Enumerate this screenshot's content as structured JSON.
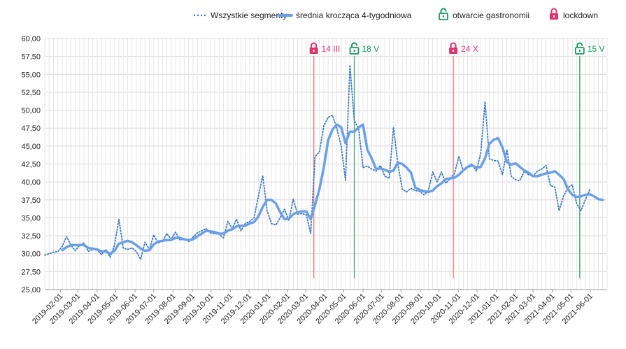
{
  "chart_data": {
    "type": "line",
    "ylim": [
      25,
      60
    ],
    "y_ticks": [
      "25,00",
      "27,50",
      "30,00",
      "32,50",
      "35,00",
      "37,50",
      "40,00",
      "42,50",
      "45,00",
      "47,50",
      "50,00",
      "52,50",
      "55,00",
      "57,50",
      "60,00"
    ],
    "x_tick_labels": [
      "2019-02-01",
      "2019-03-01",
      "2019-04-01",
      "2019-05-01",
      "2019-06-01",
      "2019-07-01",
      "2019-08-01",
      "2019-09-01",
      "2019-10-01",
      "2019-11-01",
      "2019-12-01",
      "2020-01-01",
      "2020-02-01",
      "2020-03-01",
      "2020-04-01",
      "2020-05-01",
      "2020-06-01",
      "2020-07-01",
      "2020-08-01",
      "2020-09-01",
      "2020-10-01",
      "2020-11-01",
      "2020-12-01",
      "2021-01-01",
      "2021-02-01",
      "2021-03-01",
      "2021-04-01",
      "2021-05-01",
      "2021-06-01"
    ],
    "x_range": [
      "2019-01-07",
      "2021-06-28"
    ],
    "grid": true,
    "legend_position": "top-right",
    "series": [
      {
        "name": "Wszystkie segmenty",
        "style": "dotted",
        "color": "#3a78c9",
        "points": [
          [
            "2019-01-07",
            29.8
          ],
          [
            "2019-01-14",
            30.0
          ],
          [
            "2019-01-21",
            30.2
          ],
          [
            "2019-01-28",
            30.3
          ],
          [
            "2019-02-04",
            31.0
          ],
          [
            "2019-02-11",
            32.4
          ],
          [
            "2019-02-18",
            31.2
          ],
          [
            "2019-02-25",
            30.4
          ],
          [
            "2019-03-04",
            31.2
          ],
          [
            "2019-03-11",
            31.5
          ],
          [
            "2019-03-18",
            30.3
          ],
          [
            "2019-03-25",
            30.6
          ],
          [
            "2019-04-01",
            30.5
          ],
          [
            "2019-04-08",
            29.9
          ],
          [
            "2019-04-15",
            30.6
          ],
          [
            "2019-04-22",
            29.5
          ],
          [
            "2019-04-29",
            31.2
          ],
          [
            "2019-05-06",
            34.8
          ],
          [
            "2019-05-13",
            30.8
          ],
          [
            "2019-05-20",
            30.6
          ],
          [
            "2019-05-27",
            30.8
          ],
          [
            "2019-06-03",
            30.3
          ],
          [
            "2019-06-10",
            29.2
          ],
          [
            "2019-06-17",
            31.6
          ],
          [
            "2019-06-24",
            30.6
          ],
          [
            "2019-07-01",
            32.6
          ],
          [
            "2019-07-08",
            31.5
          ],
          [
            "2019-07-15",
            31.7
          ],
          [
            "2019-07-22",
            32.8
          ],
          [
            "2019-07-29",
            32.0
          ],
          [
            "2019-08-05",
            33.0
          ],
          [
            "2019-08-12",
            31.9
          ],
          [
            "2019-08-19",
            32.1
          ],
          [
            "2019-08-26",
            31.7
          ],
          [
            "2019-09-02",
            32.3
          ],
          [
            "2019-09-09",
            32.9
          ],
          [
            "2019-09-16",
            33.2
          ],
          [
            "2019-09-23",
            33.5
          ],
          [
            "2019-09-30",
            32.9
          ],
          [
            "2019-10-07",
            32.8
          ],
          [
            "2019-10-14",
            32.7
          ],
          [
            "2019-10-21",
            32.2
          ],
          [
            "2019-10-28",
            34.5
          ],
          [
            "2019-11-04",
            33.5
          ],
          [
            "2019-11-11",
            34.8
          ],
          [
            "2019-11-18",
            33.2
          ],
          [
            "2019-11-25",
            34.2
          ],
          [
            "2019-12-02",
            34.5
          ],
          [
            "2019-12-09",
            35.0
          ],
          [
            "2019-12-16",
            38.0
          ],
          [
            "2019-12-23",
            40.9
          ],
          [
            "2019-12-30",
            36.0
          ],
          [
            "2020-01-06",
            34.2
          ],
          [
            "2020-01-13",
            34.0
          ],
          [
            "2020-01-20",
            35.0
          ],
          [
            "2020-01-27",
            36.2
          ],
          [
            "2020-02-03",
            34.6
          ],
          [
            "2020-02-10",
            37.6
          ],
          [
            "2020-02-17",
            35.5
          ],
          [
            "2020-02-24",
            35.6
          ],
          [
            "2020-03-02",
            35.4
          ],
          [
            "2020-03-09",
            32.8
          ],
          [
            "2020-03-16",
            43.5
          ],
          [
            "2020-03-23",
            44.2
          ],
          [
            "2020-03-30",
            47.8
          ],
          [
            "2020-04-06",
            49.0
          ],
          [
            "2020-04-13",
            49.3
          ],
          [
            "2020-04-20",
            47.5
          ],
          [
            "2020-04-27",
            45.0
          ],
          [
            "2020-05-04",
            40.2
          ],
          [
            "2020-05-11",
            56.3
          ],
          [
            "2020-05-18",
            48.5
          ],
          [
            "2020-05-25",
            47.5
          ],
          [
            "2020-06-01",
            42.0
          ],
          [
            "2020-06-08",
            42.2
          ],
          [
            "2020-06-15",
            41.8
          ],
          [
            "2020-06-22",
            41.5
          ],
          [
            "2020-06-29",
            42.3
          ],
          [
            "2020-07-06",
            40.8
          ],
          [
            "2020-07-13",
            40.5
          ],
          [
            "2020-07-20",
            47.6
          ],
          [
            "2020-07-27",
            42.5
          ],
          [
            "2020-08-03",
            39.0
          ],
          [
            "2020-08-10",
            38.6
          ],
          [
            "2020-08-17",
            39.1
          ],
          [
            "2020-08-24",
            38.8
          ],
          [
            "2020-08-31",
            38.7
          ],
          [
            "2020-09-07",
            38.2
          ],
          [
            "2020-09-14",
            38.8
          ],
          [
            "2020-09-21",
            41.4
          ],
          [
            "2020-09-28",
            40.0
          ],
          [
            "2020-10-05",
            41.4
          ],
          [
            "2020-10-12",
            39.8
          ],
          [
            "2020-10-19",
            40.5
          ],
          [
            "2020-10-26",
            41.2
          ],
          [
            "2020-11-02",
            43.6
          ],
          [
            "2020-11-09",
            41.5
          ],
          [
            "2020-11-16",
            42.2
          ],
          [
            "2020-11-23",
            42.5
          ],
          [
            "2020-11-30",
            41.5
          ],
          [
            "2020-12-07",
            44.0
          ],
          [
            "2020-12-14",
            51.2
          ],
          [
            "2020-12-21",
            43.2
          ],
          [
            "2020-12-28",
            43.0
          ],
          [
            "2021-01-04",
            42.9
          ],
          [
            "2021-01-11",
            41.0
          ],
          [
            "2021-01-18",
            44.5
          ],
          [
            "2021-01-25",
            40.8
          ],
          [
            "2021-02-01",
            40.3
          ],
          [
            "2021-02-08",
            40.2
          ],
          [
            "2021-02-15",
            41.5
          ],
          [
            "2021-02-22",
            41.0
          ],
          [
            "2021-03-01",
            40.8
          ],
          [
            "2021-03-08",
            41.5
          ],
          [
            "2021-03-15",
            41.8
          ],
          [
            "2021-03-22",
            42.3
          ],
          [
            "2021-03-29",
            39.5
          ],
          [
            "2021-04-05",
            39.3
          ],
          [
            "2021-04-12",
            36.0
          ],
          [
            "2021-04-19",
            38.0
          ],
          [
            "2021-04-26",
            39.2
          ],
          [
            "2021-05-03",
            39.6
          ],
          [
            "2021-05-10",
            37.0
          ],
          [
            "2021-05-17",
            36.0
          ],
          [
            "2021-05-24",
            37.5
          ],
          [
            "2021-05-31",
            38.9
          ]
        ]
      },
      {
        "name": "średnia krocząca 4-tygodniowa",
        "style": "solid",
        "color": "#6b9fe6",
        "points": [
          [
            "2019-02-04",
            30.5
          ],
          [
            "2019-02-11",
            30.9
          ],
          [
            "2019-02-18",
            31.2
          ],
          [
            "2019-02-25",
            31.2
          ],
          [
            "2019-03-04",
            31.2
          ],
          [
            "2019-03-11",
            31.2
          ],
          [
            "2019-03-18",
            30.8
          ],
          [
            "2019-03-25",
            30.7
          ],
          [
            "2019-04-01",
            30.6
          ],
          [
            "2019-04-08",
            30.3
          ],
          [
            "2019-04-15",
            30.3
          ],
          [
            "2019-04-22",
            30.0
          ],
          [
            "2019-04-29",
            30.4
          ],
          [
            "2019-05-06",
            31.4
          ],
          [
            "2019-05-13",
            31.6
          ],
          [
            "2019-05-20",
            31.8
          ],
          [
            "2019-05-27",
            31.6
          ],
          [
            "2019-06-03",
            31.2
          ],
          [
            "2019-06-10",
            30.7
          ],
          [
            "2019-06-17",
            30.4
          ],
          [
            "2019-06-24",
            30.5
          ],
          [
            "2019-07-01",
            31.3
          ],
          [
            "2019-07-08",
            31.7
          ],
          [
            "2019-07-15",
            31.8
          ],
          [
            "2019-07-22",
            31.9
          ],
          [
            "2019-07-29",
            31.9
          ],
          [
            "2019-08-05",
            32.2
          ],
          [
            "2019-08-12",
            32.2
          ],
          [
            "2019-08-19",
            32.0
          ],
          [
            "2019-08-26",
            31.9
          ],
          [
            "2019-09-02",
            32.0
          ],
          [
            "2019-09-09",
            32.4
          ],
          [
            "2019-09-16",
            32.8
          ],
          [
            "2019-09-23",
            33.2
          ],
          [
            "2019-09-30",
            33.1
          ],
          [
            "2019-10-07",
            33.0
          ],
          [
            "2019-10-14",
            32.8
          ],
          [
            "2019-10-21",
            32.8
          ],
          [
            "2019-10-28",
            33.2
          ],
          [
            "2019-11-04",
            33.4
          ],
          [
            "2019-11-11",
            33.8
          ],
          [
            "2019-11-18",
            33.9
          ],
          [
            "2019-11-25",
            33.9
          ],
          [
            "2019-12-02",
            34.2
          ],
          [
            "2019-12-09",
            34.4
          ],
          [
            "2019-12-16",
            35.2
          ],
          [
            "2019-12-23",
            36.5
          ],
          [
            "2019-12-30",
            37.5
          ],
          [
            "2020-01-06",
            37.5
          ],
          [
            "2020-01-13",
            37.0
          ],
          [
            "2020-01-20",
            35.8
          ],
          [
            "2020-01-27",
            34.8
          ],
          [
            "2020-02-03",
            34.9
          ],
          [
            "2020-02-10",
            35.5
          ],
          [
            "2020-02-17",
            35.8
          ],
          [
            "2020-02-24",
            35.9
          ],
          [
            "2020-03-02",
            35.9
          ],
          [
            "2020-03-09",
            34.8
          ],
          [
            "2020-03-16",
            36.8
          ],
          [
            "2020-03-23",
            39.0
          ],
          [
            "2020-03-30",
            42.0
          ],
          [
            "2020-04-06",
            45.8
          ],
          [
            "2020-04-13",
            47.3
          ],
          [
            "2020-04-20",
            48.0
          ],
          [
            "2020-04-27",
            47.6
          ],
          [
            "2020-05-04",
            45.4
          ],
          [
            "2020-05-11",
            47.0
          ],
          [
            "2020-05-18",
            47.0
          ],
          [
            "2020-05-25",
            47.6
          ],
          [
            "2020-06-01",
            48.0
          ],
          [
            "2020-06-08",
            44.5
          ],
          [
            "2020-06-15",
            43.3
          ],
          [
            "2020-06-22",
            41.8
          ],
          [
            "2020-06-29",
            41.9
          ],
          [
            "2020-07-06",
            41.7
          ],
          [
            "2020-07-13",
            41.4
          ],
          [
            "2020-07-20",
            41.6
          ],
          [
            "2020-07-27",
            42.7
          ],
          [
            "2020-08-03",
            42.5
          ],
          [
            "2020-08-10",
            42.0
          ],
          [
            "2020-08-17",
            41.3
          ],
          [
            "2020-08-24",
            39.2
          ],
          [
            "2020-08-31",
            38.9
          ],
          [
            "2020-09-07",
            38.7
          ],
          [
            "2020-09-14",
            38.6
          ],
          [
            "2020-09-21",
            38.8
          ],
          [
            "2020-09-28",
            39.4
          ],
          [
            "2020-10-05",
            39.8
          ],
          [
            "2020-10-12",
            40.4
          ],
          [
            "2020-10-19",
            40.5
          ],
          [
            "2020-10-26",
            40.6
          ],
          [
            "2020-11-02",
            41.0
          ],
          [
            "2020-11-09",
            41.6
          ],
          [
            "2020-11-16",
            42.1
          ],
          [
            "2020-11-23",
            42.3
          ],
          [
            "2020-11-30",
            42.0
          ],
          [
            "2020-12-07",
            42.1
          ],
          [
            "2020-12-14",
            43.3
          ],
          [
            "2020-12-21",
            45.3
          ],
          [
            "2020-12-28",
            45.9
          ],
          [
            "2021-01-04",
            46.1
          ],
          [
            "2021-01-11",
            44.8
          ],
          [
            "2021-01-18",
            42.8
          ],
          [
            "2021-01-25",
            42.4
          ],
          [
            "2021-02-01",
            42.6
          ],
          [
            "2021-02-08",
            42.1
          ],
          [
            "2021-02-15",
            41.6
          ],
          [
            "2021-02-22",
            41.3
          ],
          [
            "2021-03-01",
            40.8
          ],
          [
            "2021-03-08",
            40.8
          ],
          [
            "2021-03-15",
            41.0
          ],
          [
            "2021-03-22",
            41.2
          ],
          [
            "2021-03-29",
            41.3
          ],
          [
            "2021-04-05",
            41.5
          ],
          [
            "2021-04-12",
            41.0
          ],
          [
            "2021-04-19",
            40.4
          ],
          [
            "2021-04-26",
            39.0
          ],
          [
            "2021-05-03",
            38.2
          ],
          [
            "2021-05-10",
            37.9
          ],
          [
            "2021-05-17",
            38.0
          ],
          [
            "2021-05-24",
            38.2
          ],
          [
            "2021-05-31",
            38.3
          ],
          [
            "2021-06-07",
            38.0
          ],
          [
            "2021-06-14",
            37.6
          ],
          [
            "2021-06-21",
            37.5
          ]
        ]
      }
    ],
    "events": [
      {
        "date": "2020-03-14",
        "label": "14 III",
        "type": "lockdown"
      },
      {
        "date": "2020-05-18",
        "label": "18 V",
        "type": "otwarcie"
      },
      {
        "date": "2020-10-24",
        "label": "24 X",
        "type": "lockdown"
      },
      {
        "date": "2021-05-15",
        "label": "15 V",
        "type": "otwarcie"
      }
    ],
    "legend": [
      {
        "label": "Wszystkie segmenty",
        "kind": "dotted",
        "color": "#3a78c9"
      },
      {
        "label": "średnia krocząca 4-tygodniowa",
        "kind": "solid",
        "color": "#6b9fe6"
      },
      {
        "label": "otwarcie gastronomii",
        "kind": "lock-open-icon",
        "color": "#1a9a5c"
      },
      {
        "label": "lockdown",
        "kind": "lock-closed-icon",
        "color": "#e0336b"
      }
    ],
    "colors": {
      "lockdown": "#e0336b",
      "lockdown_line": "#e07a7a",
      "otwarcie": "#1a9a5c",
      "otwarcie_line": "#3aa66a",
      "grid": "#d8d8d8"
    }
  }
}
